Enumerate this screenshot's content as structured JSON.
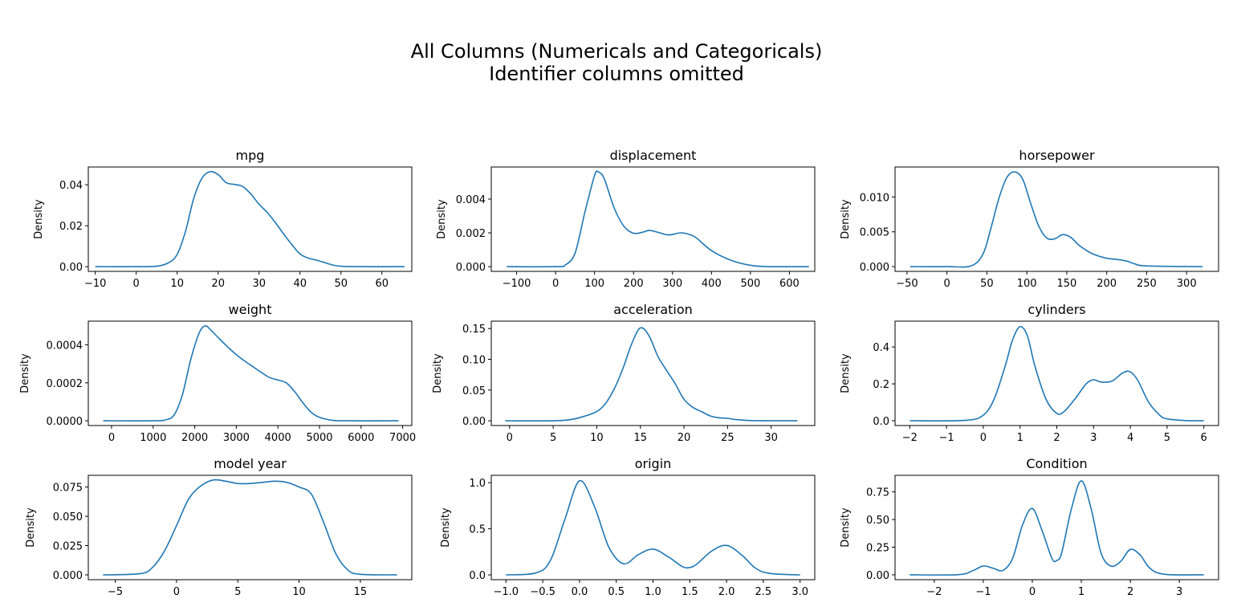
{
  "figure": {
    "title_line1": "All Columns (Numericals and Categoricals)",
    "title_line2": "Identifier columns omitted",
    "line_color": "#1f77b4"
  },
  "chart_data": [
    {
      "type": "line",
      "title": "mpg",
      "ylabel": "Density",
      "xlim": [
        -11.7,
        67.3
      ],
      "ylim": [
        -0.0023,
        0.0487
      ],
      "xticks": [
        -10,
        0,
        10,
        20,
        30,
        40,
        50,
        60
      ],
      "yticks": [
        0.0,
        0.02,
        0.04
      ],
      "ytick_labels": [
        "0.00",
        "0.02",
        "0.04"
      ],
      "x": [
        -10,
        0,
        5,
        8,
        10,
        12,
        14,
        16,
        18,
        20,
        22,
        24,
        26,
        28,
        30,
        32,
        34,
        36,
        38,
        40,
        42,
        44,
        46,
        48,
        50,
        55,
        65.5
      ],
      "y": [
        0,
        0,
        0.0002,
        0.002,
        0.006,
        0.017,
        0.033,
        0.043,
        0.0464,
        0.045,
        0.041,
        0.0402,
        0.0392,
        0.0355,
        0.0305,
        0.0265,
        0.0215,
        0.016,
        0.0108,
        0.0062,
        0.0042,
        0.0032,
        0.002,
        0.0008,
        0.0002,
        0,
        0
      ]
    },
    {
      "type": "line",
      "title": "displacement",
      "ylabel": "Density",
      "xlim": [
        -165,
        665
      ],
      "ylim": [
        -0.00028,
        0.0059
      ],
      "xticks": [
        -100,
        0,
        100,
        200,
        300,
        400,
        500,
        600
      ],
      "yticks": [
        0.0,
        0.002,
        0.004
      ],
      "ytick_labels": [
        "0.000",
        "0.002",
        "0.004"
      ],
      "x": [
        -125,
        0,
        25,
        50,
        75,
        100,
        110,
        125,
        150,
        175,
        200,
        225,
        240,
        260,
        290,
        320,
        340,
        360,
        400,
        450,
        500,
        550,
        650
      ],
      "y": [
        0,
        0,
        0.0001,
        0.0008,
        0.0032,
        0.0054,
        0.0056,
        0.0052,
        0.0035,
        0.0024,
        0.00198,
        0.00205,
        0.00215,
        0.00205,
        0.00188,
        0.002,
        0.00193,
        0.00172,
        0.00095,
        0.00038,
        8e-05,
        0,
        0
      ]
    },
    {
      "type": "line",
      "title": "horsepower",
      "ylabel": "Density",
      "xlim": [
        -65,
        340
      ],
      "ylim": [
        -0.00068,
        0.0143
      ],
      "xticks": [
        -50,
        0,
        50,
        100,
        150,
        200,
        250,
        300
      ],
      "yticks": [
        0.0,
        0.005,
        0.01
      ],
      "ytick_labels": [
        "0.000",
        "0.005",
        "0.010"
      ],
      "x": [
        -46,
        0,
        30,
        45,
        55,
        65,
        75,
        85,
        95,
        105,
        115,
        125,
        135,
        145,
        155,
        165,
        175,
        185,
        200,
        215,
        225,
        235,
        250,
        320
      ],
      "y": [
        0,
        0,
        0.0001,
        0.0018,
        0.0055,
        0.0098,
        0.0128,
        0.0136,
        0.0125,
        0.009,
        0.0058,
        0.0041,
        0.004,
        0.0046,
        0.0042,
        0.0031,
        0.0023,
        0.0017,
        0.0012,
        0.001,
        0.0008,
        0.0004,
        0.0001,
        0
      ]
    },
    {
      "type": "line",
      "title": "weight",
      "ylabel": "Density",
      "xlim": [
        -560,
        7220
      ],
      "ylim": [
        -2.5e-05,
        0.000525
      ],
      "xticks": [
        0,
        1000,
        2000,
        3000,
        4000,
        5000,
        6000,
        7000
      ],
      "yticks": [
        0.0,
        0.0002,
        0.0004
      ],
      "ytick_labels": [
        "0.0000",
        "0.0002",
        "0.0004"
      ],
      "x": [
        -200,
        1000,
        1300,
        1500,
        1700,
        1900,
        2100,
        2250,
        2400,
        2600,
        2800,
        3000,
        3200,
        3400,
        3600,
        3800,
        4000,
        4200,
        4400,
        4600,
        4800,
        5000,
        5300,
        5600,
        6900
      ],
      "y": [
        0,
        0,
        5e-06,
        3e-05,
        0.000135,
        0.00032,
        0.00046,
        0.0005,
        0.000475,
        0.00043,
        0.000388,
        0.000348,
        0.000315,
        0.000285,
        0.000255,
        0.000228,
        0.000215,
        0.0002,
        0.000155,
        9.5e-05,
        4.5e-05,
        1.8e-05,
        3e-06,
        0,
        0
      ]
    },
    {
      "type": "line",
      "title": "acceleration",
      "ylabel": "Density",
      "xlim": [
        -2.1,
        35
      ],
      "ylim": [
        -0.0077,
        0.162
      ],
      "xticks": [
        0,
        5,
        10,
        15,
        20,
        25,
        30
      ],
      "yticks": [
        0.0,
        0.05,
        0.1,
        0.15
      ],
      "ytick_labels": [
        "0.00",
        "0.05",
        "0.10",
        "0.15"
      ],
      "x": [
        -0.5,
        5,
        7,
        8.5,
        10,
        11,
        12,
        13,
        14,
        15,
        16,
        17,
        18,
        19,
        20,
        21,
        22,
        23,
        24,
        25,
        26,
        28,
        33
      ],
      "y": [
        0,
        0,
        0.002,
        0.007,
        0.015,
        0.028,
        0.052,
        0.085,
        0.125,
        0.151,
        0.138,
        0.105,
        0.082,
        0.06,
        0.035,
        0.022,
        0.015,
        0.008,
        0.005,
        0.004,
        0.002,
        0.0003,
        0
      ]
    },
    {
      "type": "line",
      "title": "cylinders",
      "ylabel": "Density",
      "xlim": [
        -2.4,
        6.4
      ],
      "ylim": [
        -0.026,
        0.54
      ],
      "xticks": [
        -2,
        -1,
        0,
        1,
        2,
        3,
        4,
        5,
        6
      ],
      "yticks": [
        0.0,
        0.2,
        0.4
      ],
      "ytick_labels": [
        "0.0",
        "0.2",
        "0.4"
      ],
      "x": [
        -2,
        -0.5,
        0,
        0.3,
        0.6,
        0.8,
        1,
        1.2,
        1.4,
        1.7,
        2,
        2.2,
        2.5,
        2.8,
        3,
        3.2,
        3.5,
        3.8,
        4,
        4.2,
        4.5,
        4.8,
        5,
        5.5,
        6
      ],
      "y": [
        0,
        0.002,
        0.03,
        0.12,
        0.3,
        0.44,
        0.51,
        0.46,
        0.3,
        0.12,
        0.04,
        0.05,
        0.12,
        0.2,
        0.222,
        0.21,
        0.215,
        0.26,
        0.265,
        0.22,
        0.1,
        0.03,
        0.01,
        0.001,
        0
      ]
    },
    {
      "type": "line",
      "title": "model year",
      "ylabel": "Density",
      "xlim": [
        -7.2,
        19.2
      ],
      "ylim": [
        -0.0041,
        0.085
      ],
      "xticks": [
        -5,
        0,
        5,
        10,
        15
      ],
      "yticks": [
        0.0,
        0.025,
        0.05,
        0.075
      ],
      "ytick_labels": [
        "0.000",
        "0.025",
        "0.050",
        "0.075"
      ],
      "x": [
        -6,
        -3,
        -2,
        -1,
        0,
        1,
        2,
        3,
        4,
        5,
        6,
        7,
        8,
        9,
        10,
        11,
        12,
        13,
        14,
        15,
        18
      ],
      "y": [
        0,
        0.001,
        0.006,
        0.02,
        0.042,
        0.065,
        0.076,
        0.081,
        0.08,
        0.078,
        0.078,
        0.079,
        0.08,
        0.079,
        0.075,
        0.069,
        0.045,
        0.018,
        0.004,
        0.0005,
        0
      ]
    },
    {
      "type": "line",
      "title": "origin",
      "ylabel": "Density",
      "xlim": [
        -1.2,
        3.2
      ],
      "ylim": [
        -0.052,
        1.08
      ],
      "xticks": [
        -1.0,
        -0.5,
        0.0,
        0.5,
        1.0,
        1.5,
        2.0,
        2.5,
        3.0
      ],
      "xtick_labels": [
        "−1.0",
        "−0.5",
        "0.0",
        "0.5",
        "1.0",
        "1.5",
        "2.0",
        "2.5",
        "3.0"
      ],
      "yticks": [
        0.0,
        0.5,
        1.0
      ],
      "ytick_labels": [
        "0.0",
        "0.5",
        "1.0"
      ],
      "x": [
        -1,
        -0.6,
        -0.4,
        -0.2,
        0,
        0.2,
        0.4,
        0.6,
        0.8,
        1,
        1.2,
        1.4,
        1.5,
        1.6,
        1.8,
        2,
        2.2,
        2.4,
        2.6,
        3
      ],
      "y": [
        0,
        0.02,
        0.15,
        0.6,
        1.02,
        0.75,
        0.3,
        0.12,
        0.22,
        0.28,
        0.2,
        0.09,
        0.08,
        0.12,
        0.26,
        0.32,
        0.22,
        0.07,
        0.015,
        0
      ]
    },
    {
      "type": "line",
      "title": "Condition",
      "ylabel": "Density",
      "xlim": [
        -2.8,
        3.8
      ],
      "ylim": [
        -0.044,
        0.9
      ],
      "xticks": [
        -2,
        -1,
        0,
        1,
        2,
        3
      ],
      "yticks": [
        0.0,
        0.25,
        0.5,
        0.75
      ],
      "ytick_labels": [
        "0.00",
        "0.25",
        "0.50",
        "0.75"
      ],
      "x": [
        -2.5,
        -1.5,
        -1.2,
        -1,
        -0.8,
        -0.6,
        -0.4,
        -0.2,
        0,
        0.2,
        0.4,
        0.5,
        0.6,
        0.8,
        1,
        1.2,
        1.4,
        1.6,
        1.8,
        2,
        2.2,
        2.4,
        2.7,
        3.5
      ],
      "y": [
        0,
        0.002,
        0.04,
        0.08,
        0.06,
        0.04,
        0.15,
        0.45,
        0.6,
        0.4,
        0.15,
        0.13,
        0.2,
        0.6,
        0.85,
        0.6,
        0.2,
        0.08,
        0.12,
        0.23,
        0.18,
        0.06,
        0.005,
        0
      ]
    }
  ]
}
